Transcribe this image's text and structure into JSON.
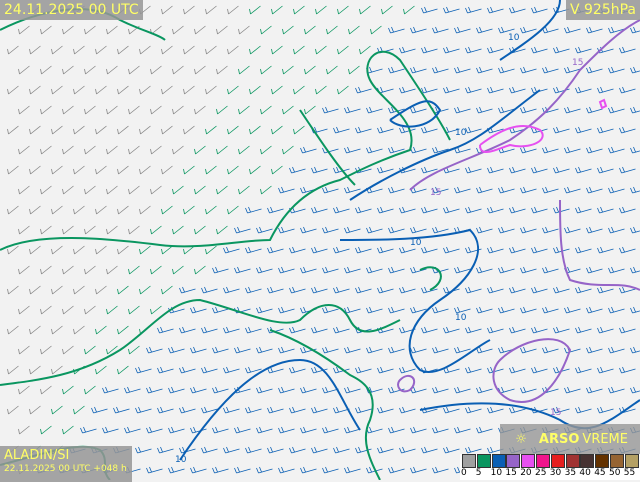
{
  "header": {
    "valid_time": "24.11.2025 00 UTC",
    "field": "V 925hPa"
  },
  "model": {
    "name": "ALADIN/SI",
    "run": "22.11.2025 00 UTC +048 h"
  },
  "brand": {
    "bold": "ARSO",
    "light": "VREME",
    "icon": "sun-icon"
  },
  "contour_labels": [
    "10",
    "10",
    "10",
    "10",
    "15",
    "15",
    "15",
    "10"
  ],
  "legend": {
    "ticks": [
      "0",
      "5",
      "10",
      "15",
      "20",
      "25",
      "30",
      "35",
      "40",
      "45",
      "50",
      "55"
    ],
    "colors": [
      "#a0a0a0",
      "#0a9660",
      "#0a5fb4",
      "#9664c8",
      "#e650f0",
      "#f0148c",
      "#e61e1e",
      "#a03232",
      "#463232",
      "#643200",
      "#966432",
      "#b4a064"
    ]
  }
}
